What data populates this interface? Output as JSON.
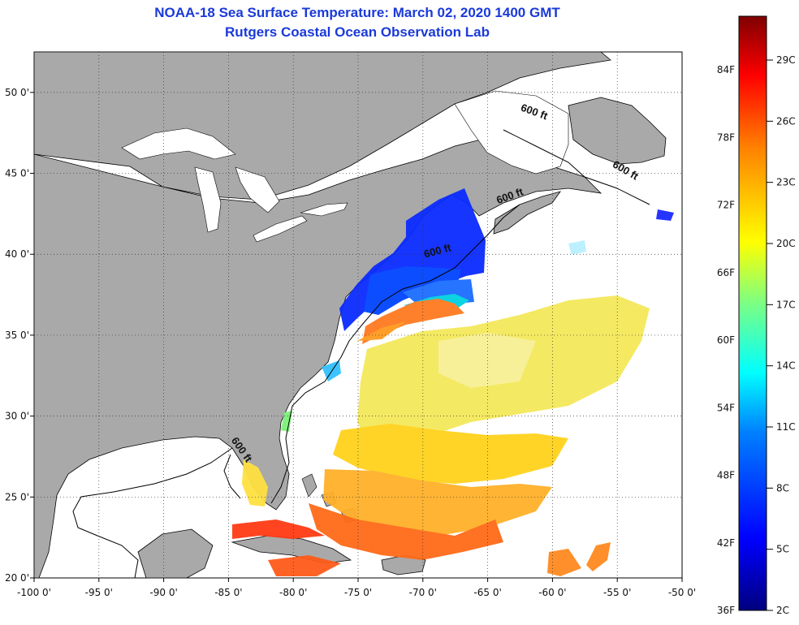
{
  "header": {
    "title_line1": "NOAA-18 Sea Surface Temperature:  March 02, 2020 1400 GMT",
    "title_line2": "Rutgers Coastal Ocean Observation Lab"
  },
  "colors": {
    "land": "#a9a9a9",
    "water_nodata": "#ffffff",
    "title": "#1a3ad8"
  },
  "map": {
    "lon_range": [
      -100,
      -50
    ],
    "lat_range": [
      20,
      52.5
    ],
    "lon_ticks": [
      {
        "value": -100,
        "label": "-100 0'"
      },
      {
        "value": -95,
        "label": "-95 0'"
      },
      {
        "value": -90,
        "label": "-90 0'"
      },
      {
        "value": -85,
        "label": "-85 0'"
      },
      {
        "value": -80,
        "label": "-80 0'"
      },
      {
        "value": -75,
        "label": "-75 0'"
      },
      {
        "value": -70,
        "label": "-70 0'"
      },
      {
        "value": -65,
        "label": "-65 0'"
      },
      {
        "value": -60,
        "label": "-60 0'"
      },
      {
        "value": -55,
        "label": "-55 0'"
      },
      {
        "value": -50,
        "label": "-50 0'"
      }
    ],
    "lat_ticks": [
      {
        "value": 50,
        "label": "50 0'"
      },
      {
        "value": 45,
        "label": "45 0'"
      },
      {
        "value": 40,
        "label": "40 0'"
      },
      {
        "value": 35,
        "label": "35 0'"
      },
      {
        "value": 30,
        "label": "30 0'"
      },
      {
        "value": 25,
        "label": "25 0'"
      },
      {
        "value": 20,
        "label": "20 0'"
      }
    ],
    "contour_labels": [
      {
        "text": "600 ft",
        "lon": -61.5,
        "lat": 48.6,
        "rot": 20
      },
      {
        "text": "600 ft",
        "lon": -54.5,
        "lat": 45.0,
        "rot": 30
      },
      {
        "text": "600 ft",
        "lon": -63.2,
        "lat": 43.4,
        "rot": -20
      },
      {
        "text": "600 ft",
        "lon": -68.8,
        "lat": 40.0,
        "rot": -15
      },
      {
        "text": "600 ft",
        "lon": -84.2,
        "lat": 27.8,
        "rot": 55
      }
    ]
  },
  "colorbar": {
    "fahrenheit": [
      "36F",
      "42F",
      "48F",
      "54F",
      "60F",
      "66F",
      "72F",
      "78F",
      "84F"
    ],
    "celsius": [
      "2C",
      "5C",
      "8C",
      "11C",
      "14C",
      "17C",
      "20C",
      "23C",
      "26C",
      "29C"
    ]
  }
}
